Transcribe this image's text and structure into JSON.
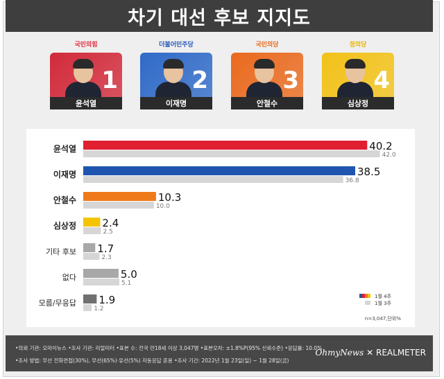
{
  "title": "차기 대선 후보 지지도",
  "candidates": [
    {
      "party": "국민의힘",
      "name": "윤석열",
      "number": "1",
      "color": "#d22a3a",
      "party_color": "#e4283a"
    },
    {
      "party": "더불어민주당",
      "name": "이재명",
      "number": "2",
      "color": "#2f6ac8",
      "party_color": "#2757b8"
    },
    {
      "party": "국민의당",
      "name": "안철수",
      "number": "3",
      "color": "#ea6a1e",
      "party_color": "#e86a1b"
    },
    {
      "party": "정의당",
      "name": "심상정",
      "number": "4",
      "color": "#f2c218",
      "party_color": "#e8b400"
    }
  ],
  "chart_data": {
    "type": "bar",
    "orientation": "horizontal",
    "categories": [
      "윤석열",
      "이재명",
      "안철수",
      "심상정",
      "기타 후보",
      "없다",
      "모름/무응답"
    ],
    "series": [
      {
        "name": "1월 4주",
        "values": [
          40.2,
          38.5,
          10.3,
          2.4,
          1.7,
          5.0,
          1.9
        ]
      },
      {
        "name": "1월 3주",
        "values": [
          42.0,
          36.8,
          10.0,
          2.5,
          2.3,
          5.1,
          1.2
        ]
      }
    ],
    "value_labels_current": [
      "40.2",
      "38.5",
      "10.3",
      "2.4",
      "1.7",
      "5.0",
      "1.9"
    ],
    "value_labels_previous": [
      "42.0",
      "36.8",
      "10.0",
      "2.5",
      "2.3",
      "5.1",
      "1.2"
    ],
    "current_colors": [
      "#e02030",
      "#1f55b0",
      "#ee7a1a",
      "#f5c400",
      "#a8a8a8",
      "#a8a8a8",
      "#707070"
    ],
    "previous_color": "#d6d6d6",
    "legend_colors": [
      "#1f55b0",
      "#e02030",
      "#ee7a1a",
      "#f5c400"
    ],
    "xlim": [
      0,
      44
    ],
    "legend_position": "bottom-right",
    "sample_note": "n=3,047,단위%"
  },
  "footer": {
    "line1": "•의뢰 기관: 오마이뉴스 •조사 기관: 리얼미터 •표본 수: 전국 만18세 이상 3,047명 •표본오차: ±1.8%P(95% 신뢰수준) •응답률: 10.0%",
    "line2": "•조사 방법: 무선 전화면접(30%), 무선(65%)·유선(5%) 자동응답 혼용  •조사 기간: 2022년 1월 23일(일) ~ 1월 28일(금)",
    "brand_left": "OhmyNews",
    "brand_x": "✕",
    "brand_right": "REALMETER"
  }
}
